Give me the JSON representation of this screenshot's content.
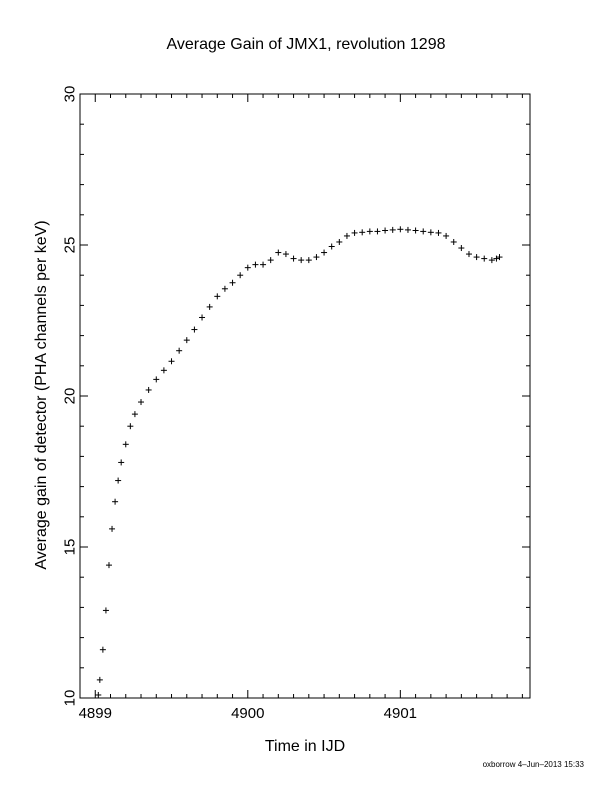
{
  "chart_data": {
    "type": "scatter",
    "title": "Average Gain of JMX1, revolution 1298",
    "xlabel": "Time in IJD",
    "ylabel": "Average gain of detector (PHA channels per keV)",
    "xlim": [
      4898.9,
      4901.85
    ],
    "ylim": [
      10,
      30
    ],
    "xticks": [
      4899,
      4900,
      4901
    ],
    "yticks": [
      10,
      15,
      20,
      25,
      30
    ],
    "xtick_labels": [
      "4899",
      "4900",
      "4901"
    ],
    "ytick_labels": [
      "10",
      "15",
      "20",
      "25",
      "30"
    ],
    "marker": "+",
    "grid": false,
    "series": [
      {
        "x": [
          4899.02,
          4899.03,
          4899.05,
          4899.07,
          4899.09,
          4899.11,
          4899.13,
          4899.15,
          4899.17,
          4899.2,
          4899.23,
          4899.26,
          4899.3,
          4899.35,
          4899.4,
          4899.45,
          4899.5,
          4899.55,
          4899.6,
          4899.65,
          4899.7,
          4899.75,
          4899.8,
          4899.85,
          4899.9,
          4899.95,
          4900.0,
          4900.05,
          4900.1,
          4900.15,
          4900.2,
          4900.25,
          4900.3,
          4900.35,
          4900.4,
          4900.45,
          4900.5,
          4900.55,
          4900.6,
          4900.65,
          4900.7,
          4900.75,
          4900.8,
          4900.85,
          4900.9,
          4900.95,
          4901.0,
          4901.05,
          4901.1,
          4901.15,
          4901.2,
          4901.25,
          4901.3,
          4901.35,
          4901.4,
          4901.45,
          4901.5,
          4901.55,
          4901.6,
          4901.63,
          4901.65
        ],
        "y": [
          10.1,
          10.6,
          11.6,
          12.9,
          14.4,
          15.6,
          16.5,
          17.2,
          17.8,
          18.4,
          19.0,
          19.4,
          19.8,
          20.2,
          20.55,
          20.85,
          21.15,
          21.5,
          21.85,
          22.2,
          22.6,
          22.95,
          23.3,
          23.55,
          23.75,
          24.0,
          24.25,
          24.35,
          24.35,
          24.5,
          24.75,
          24.7,
          24.55,
          24.5,
          24.5,
          24.6,
          24.75,
          24.95,
          25.1,
          25.3,
          25.4,
          25.42,
          25.45,
          25.45,
          25.48,
          25.5,
          25.52,
          25.5,
          25.48,
          25.45,
          25.42,
          25.4,
          25.3,
          25.1,
          24.9,
          24.7,
          24.6,
          24.55,
          24.5,
          24.55,
          24.6
        ]
      }
    ]
  },
  "footer": {
    "credit": "oxborrow  4–Jun–2013 15:33"
  }
}
